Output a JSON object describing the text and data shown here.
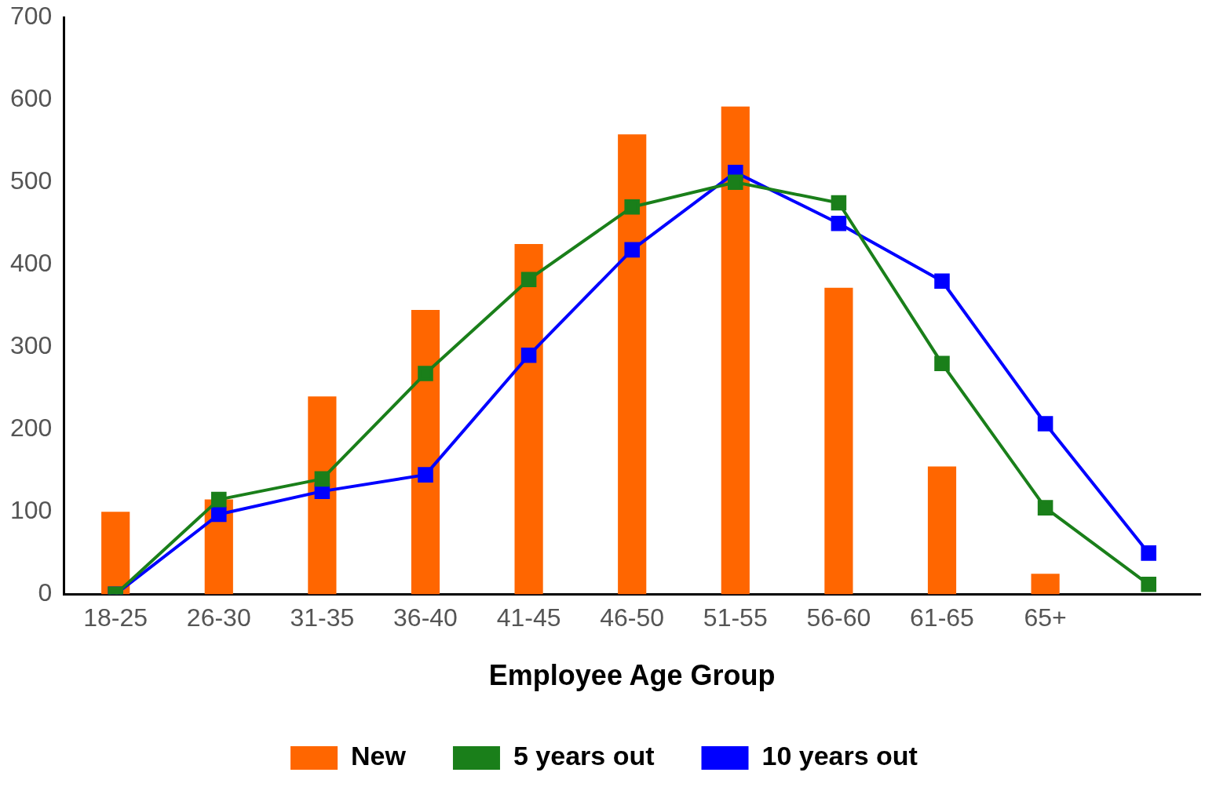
{
  "chart_data": {
    "type": "bar",
    "xlabel": "Employee Age Group",
    "categories": [
      "18-25",
      "26-30",
      "31-35",
      "36-40",
      "41-45",
      "46-50",
      "51-55",
      "56-60",
      "61-65",
      "65+",
      null
    ],
    "series": [
      {
        "name": "New",
        "color": "#ff6600",
        "values": [
          100,
          115,
          240,
          345,
          425,
          558,
          592,
          372,
          155,
          25,
          null
        ]
      },
      {
        "name": "5 years out",
        "type": "line",
        "color": "#1a7f1a",
        "values": [
          0,
          115,
          140,
          268,
          382,
          470,
          500,
          475,
          280,
          105,
          12
        ]
      },
      {
        "name": "10 years out",
        "type": "line",
        "color": "#0000ff",
        "values": [
          0,
          97,
          125,
          145,
          290,
          418,
          512,
          450,
          380,
          207,
          50
        ]
      }
    ],
    "ylim": [
      0,
      700
    ],
    "yticks": [
      0,
      100,
      200,
      300,
      400,
      500,
      600,
      700
    ],
    "grid": false,
    "legend": "bottom",
    "marker": "square",
    "line_style": "solid"
  }
}
